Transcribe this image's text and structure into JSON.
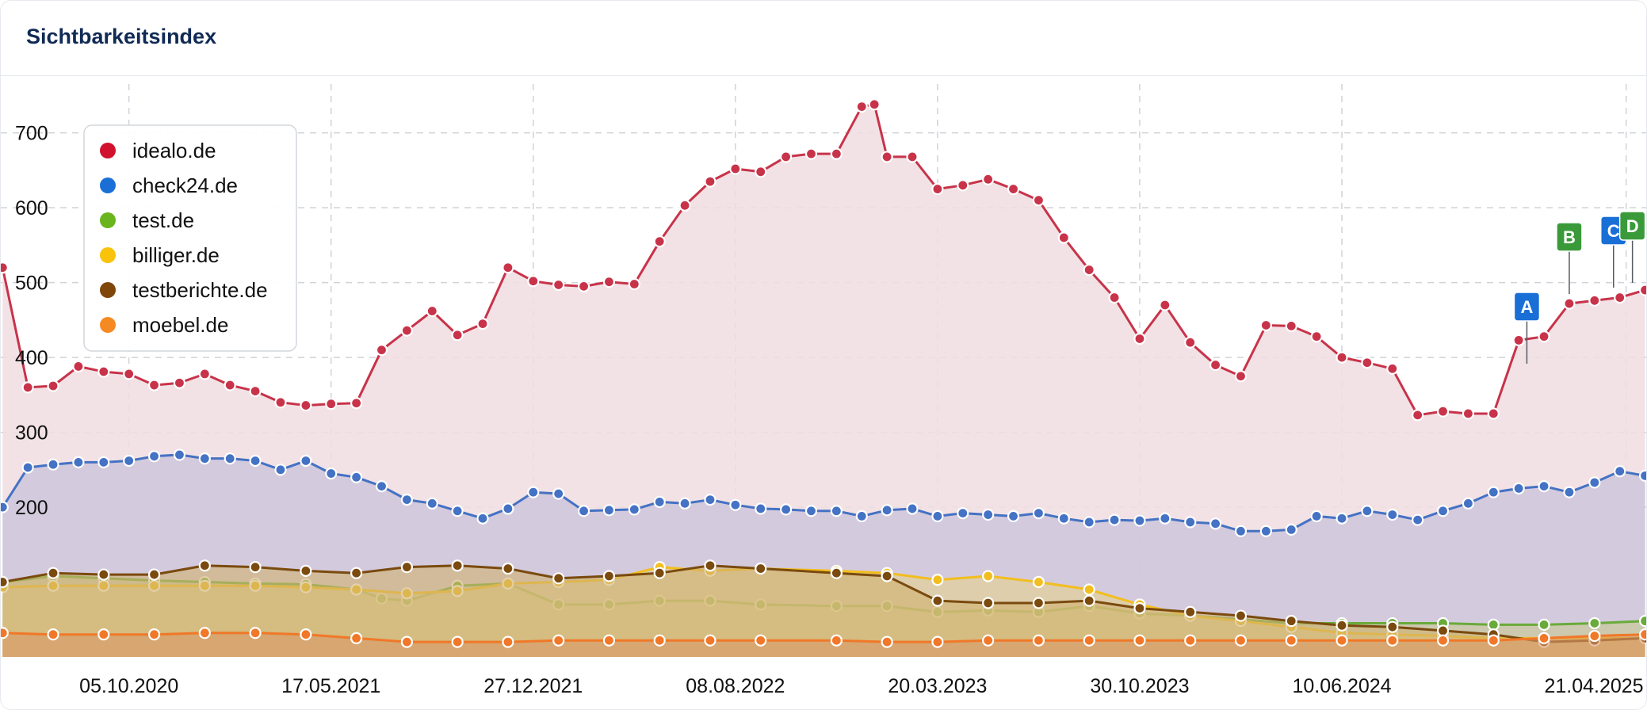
{
  "header": {
    "title": "Sichtbarkeitsindex"
  },
  "chart_data": {
    "type": "area",
    "ylabel": "",
    "xlabel": "",
    "grid": true,
    "legend_position": "top-left",
    "ylim": [
      0,
      760
    ],
    "y_ticks": [
      200,
      300,
      400,
      500,
      600,
      700
    ],
    "x_range": [
      "2020-05-16",
      "2025-05-15"
    ],
    "x_ticks": [
      "05.10.2020",
      "17.05.2021",
      "27.12.2021",
      "08.08.2022",
      "20.03.2023",
      "30.10.2023",
      "10.06.2024",
      "21.04.2025"
    ],
    "x_tick_dates": [
      "2020-10-05",
      "2021-05-17",
      "2021-12-27",
      "2022-08-08",
      "2023-03-20",
      "2023-10-30",
      "2024-06-10",
      "2025-04-21"
    ],
    "series": [
      {
        "name": "idealo.de",
        "color": "#c8334a",
        "fill": "#f0dde0",
        "points": [
          [
            "2020-05-18",
            520
          ],
          [
            "2020-06-15",
            360
          ],
          [
            "2020-07-13",
            362
          ],
          [
            "2020-08-10",
            388
          ],
          [
            "2020-09-07",
            381
          ],
          [
            "2020-10-05",
            378
          ],
          [
            "2020-11-02",
            363
          ],
          [
            "2020-11-30",
            366
          ],
          [
            "2020-12-28",
            378
          ],
          [
            "2021-01-25",
            363
          ],
          [
            "2021-02-22",
            355
          ],
          [
            "2021-03-22",
            340
          ],
          [
            "2021-04-19",
            336
          ],
          [
            "2021-05-17",
            338
          ],
          [
            "2021-06-14",
            339
          ],
          [
            "2021-07-12",
            410
          ],
          [
            "2021-08-09",
            436
          ],
          [
            "2021-09-06",
            462
          ],
          [
            "2021-10-04",
            430
          ],
          [
            "2021-11-01",
            445
          ],
          [
            "2021-11-29",
            520
          ],
          [
            "2021-12-27",
            502
          ],
          [
            "2022-01-24",
            497
          ],
          [
            "2022-02-21",
            495
          ],
          [
            "2022-03-21",
            501
          ],
          [
            "2022-04-18",
            498
          ],
          [
            "2022-05-16",
            555
          ],
          [
            "2022-06-13",
            603
          ],
          [
            "2022-07-11",
            635
          ],
          [
            "2022-08-08",
            652
          ],
          [
            "2022-09-05",
            648
          ],
          [
            "2022-10-03",
            668
          ],
          [
            "2022-10-31",
            672
          ],
          [
            "2022-11-28",
            672
          ],
          [
            "2022-12-26",
            735
          ],
          [
            "2023-01-09",
            738
          ],
          [
            "2023-01-23",
            668
          ],
          [
            "2023-02-20",
            668
          ],
          [
            "2023-03-20",
            625
          ],
          [
            "2023-04-17",
            630
          ],
          [
            "2023-05-15",
            638
          ],
          [
            "2023-06-12",
            625
          ],
          [
            "2023-07-10",
            610
          ],
          [
            "2023-08-07",
            560
          ],
          [
            "2023-09-04",
            517
          ],
          [
            "2023-10-02",
            480
          ],
          [
            "2023-10-30",
            425
          ],
          [
            "2023-11-27",
            470
          ],
          [
            "2023-12-25",
            420
          ],
          [
            "2024-01-22",
            390
          ],
          [
            "2024-02-19",
            375
          ],
          [
            "2024-03-18",
            443
          ],
          [
            "2024-04-15",
            442
          ],
          [
            "2024-05-13",
            428
          ],
          [
            "2024-06-10",
            400
          ],
          [
            "2024-07-08",
            393
          ],
          [
            "2024-08-05",
            385
          ],
          [
            "2024-09-02",
            323
          ],
          [
            "2024-09-30",
            328
          ],
          [
            "2024-10-28",
            325
          ],
          [
            "2024-11-25",
            325
          ],
          [
            "2024-12-23",
            423
          ],
          [
            "2025-01-20",
            428
          ],
          [
            "2025-02-17",
            472
          ],
          [
            "2025-03-17",
            476
          ],
          [
            "2025-04-14",
            480
          ],
          [
            "2025-05-12",
            490
          ]
        ]
      },
      {
        "name": "check24.de",
        "color": "#4472c4",
        "fill": "#cec6dc",
        "points": [
          [
            "2020-05-18",
            200
          ],
          [
            "2020-06-15",
            253
          ],
          [
            "2020-07-13",
            257
          ],
          [
            "2020-08-10",
            260
          ],
          [
            "2020-09-07",
            260
          ],
          [
            "2020-10-05",
            262
          ],
          [
            "2020-11-02",
            268
          ],
          [
            "2020-11-30",
            270
          ],
          [
            "2020-12-28",
            265
          ],
          [
            "2021-01-25",
            265
          ],
          [
            "2021-02-22",
            262
          ],
          [
            "2021-03-22",
            250
          ],
          [
            "2021-04-19",
            262
          ],
          [
            "2021-05-17",
            245
          ],
          [
            "2021-06-14",
            240
          ],
          [
            "2021-07-12",
            228
          ],
          [
            "2021-08-09",
            210
          ],
          [
            "2021-09-06",
            205
          ],
          [
            "2021-10-04",
            195
          ],
          [
            "2021-11-01",
            185
          ],
          [
            "2021-11-29",
            198
          ],
          [
            "2021-12-27",
            220
          ],
          [
            "2022-01-24",
            218
          ],
          [
            "2022-02-21",
            195
          ],
          [
            "2022-03-21",
            196
          ],
          [
            "2022-04-18",
            197
          ],
          [
            "2022-05-16",
            207
          ],
          [
            "2022-06-13",
            205
          ],
          [
            "2022-07-11",
            210
          ],
          [
            "2022-08-08",
            203
          ],
          [
            "2022-09-05",
            198
          ],
          [
            "2022-10-03",
            197
          ],
          [
            "2022-10-31",
            195
          ],
          [
            "2022-11-28",
            195
          ],
          [
            "2022-12-26",
            188
          ],
          [
            "2023-01-23",
            196
          ],
          [
            "2023-02-20",
            198
          ],
          [
            "2023-03-20",
            188
          ],
          [
            "2023-04-17",
            192
          ],
          [
            "2023-05-15",
            190
          ],
          [
            "2023-06-12",
            188
          ],
          [
            "2023-07-10",
            192
          ],
          [
            "2023-08-07",
            185
          ],
          [
            "2023-09-04",
            180
          ],
          [
            "2023-10-02",
            183
          ],
          [
            "2023-10-30",
            182
          ],
          [
            "2023-11-27",
            185
          ],
          [
            "2023-12-25",
            180
          ],
          [
            "2024-01-22",
            178
          ],
          [
            "2024-02-19",
            168
          ],
          [
            "2024-03-18",
            168
          ],
          [
            "2024-04-15",
            170
          ],
          [
            "2024-05-13",
            188
          ],
          [
            "2024-06-10",
            185
          ],
          [
            "2024-07-08",
            195
          ],
          [
            "2024-08-05",
            190
          ],
          [
            "2024-09-02",
            183
          ],
          [
            "2024-09-30",
            195
          ],
          [
            "2024-10-28",
            205
          ],
          [
            "2024-11-25",
            220
          ],
          [
            "2024-12-23",
            225
          ],
          [
            "2025-01-20",
            228
          ],
          [
            "2025-02-17",
            220
          ],
          [
            "2025-03-17",
            233
          ],
          [
            "2025-04-14",
            248
          ],
          [
            "2025-05-12",
            242
          ]
        ]
      },
      {
        "name": "test.de",
        "color": "#6aaa3a",
        "fill": "#c8c890",
        "points": [
          [
            "2020-05-18",
            100
          ],
          [
            "2020-07-13",
            108
          ],
          [
            "2020-09-07",
            105
          ],
          [
            "2020-11-02",
            102
          ],
          [
            "2020-12-28",
            100
          ],
          [
            "2021-02-22",
            98
          ],
          [
            "2021-04-19",
            97
          ],
          [
            "2021-06-14",
            90
          ],
          [
            "2021-07-12",
            78
          ],
          [
            "2021-08-09",
            75
          ],
          [
            "2021-10-04",
            95
          ],
          [
            "2021-11-29",
            98
          ],
          [
            "2022-01-24",
            70
          ],
          [
            "2022-03-21",
            70
          ],
          [
            "2022-05-16",
            75
          ],
          [
            "2022-07-11",
            75
          ],
          [
            "2022-09-05",
            70
          ],
          [
            "2022-11-28",
            68
          ],
          [
            "2023-01-23",
            68
          ],
          [
            "2023-03-20",
            60
          ],
          [
            "2023-05-15",
            62
          ],
          [
            "2023-07-10",
            60
          ],
          [
            "2023-09-04",
            68
          ],
          [
            "2023-10-30",
            58
          ],
          [
            "2023-12-25",
            55
          ],
          [
            "2024-02-19",
            50
          ],
          [
            "2024-04-15",
            45
          ],
          [
            "2024-06-10",
            45
          ],
          [
            "2024-08-05",
            45
          ],
          [
            "2024-09-30",
            45
          ],
          [
            "2024-11-25",
            43
          ],
          [
            "2025-01-20",
            43
          ],
          [
            "2025-03-17",
            45
          ],
          [
            "2025-05-12",
            48
          ]
        ]
      },
      {
        "name": "billiger.de",
        "color": "#f2be1e",
        "fill": "#e6d08a",
        "points": [
          [
            "2020-05-18",
            93
          ],
          [
            "2020-07-13",
            95
          ],
          [
            "2020-09-07",
            95
          ],
          [
            "2020-11-02",
            95
          ],
          [
            "2020-12-28",
            95
          ],
          [
            "2021-02-22",
            95
          ],
          [
            "2021-04-19",
            93
          ],
          [
            "2021-06-14",
            90
          ],
          [
            "2021-08-09",
            85
          ],
          [
            "2021-10-04",
            88
          ],
          [
            "2021-11-29",
            98
          ],
          [
            "2022-01-24",
            100
          ],
          [
            "2022-03-21",
            103
          ],
          [
            "2022-05-16",
            120
          ],
          [
            "2022-07-11",
            115
          ],
          [
            "2022-09-05",
            118
          ],
          [
            "2022-11-28",
            115
          ],
          [
            "2023-01-23",
            112
          ],
          [
            "2023-03-20",
            103
          ],
          [
            "2023-05-15",
            108
          ],
          [
            "2023-07-10",
            100
          ],
          [
            "2023-09-04",
            90
          ],
          [
            "2023-10-30",
            70
          ],
          [
            "2023-12-25",
            55
          ],
          [
            "2024-02-19",
            48
          ],
          [
            "2024-04-15",
            40
          ],
          [
            "2024-06-10",
            32
          ],
          [
            "2024-08-05",
            30
          ],
          [
            "2024-09-30",
            28
          ],
          [
            "2024-11-25",
            25
          ],
          [
            "2025-01-20",
            25
          ],
          [
            "2025-03-17",
            25
          ],
          [
            "2025-05-12",
            25
          ]
        ]
      },
      {
        "name": "testberichte.de",
        "color": "#7a4a0e",
        "fill": "#d0b070",
        "points": [
          [
            "2020-05-18",
            100
          ],
          [
            "2020-07-13",
            112
          ],
          [
            "2020-09-07",
            110
          ],
          [
            "2020-11-02",
            110
          ],
          [
            "2020-12-28",
            122
          ],
          [
            "2021-02-22",
            120
          ],
          [
            "2021-04-19",
            115
          ],
          [
            "2021-06-14",
            112
          ],
          [
            "2021-08-09",
            120
          ],
          [
            "2021-10-04",
            122
          ],
          [
            "2021-11-29",
            118
          ],
          [
            "2022-01-24",
            105
          ],
          [
            "2022-03-21",
            108
          ],
          [
            "2022-05-16",
            112
          ],
          [
            "2022-07-11",
            122
          ],
          [
            "2022-09-05",
            118
          ],
          [
            "2022-11-28",
            112
          ],
          [
            "2023-01-23",
            108
          ],
          [
            "2023-03-20",
            75
          ],
          [
            "2023-05-15",
            72
          ],
          [
            "2023-07-10",
            72
          ],
          [
            "2023-09-04",
            75
          ],
          [
            "2023-10-30",
            65
          ],
          [
            "2023-12-25",
            60
          ],
          [
            "2024-02-19",
            55
          ],
          [
            "2024-04-15",
            48
          ],
          [
            "2024-06-10",
            42
          ],
          [
            "2024-08-05",
            40
          ],
          [
            "2024-09-30",
            35
          ],
          [
            "2024-11-25",
            30
          ],
          [
            "2025-01-20",
            20
          ],
          [
            "2025-03-17",
            22
          ],
          [
            "2025-05-12",
            25
          ]
        ]
      },
      {
        "name": "moebel.de",
        "color": "#f07828",
        "fill": "#d89868",
        "points": [
          [
            "2020-05-18",
            32
          ],
          [
            "2020-07-13",
            30
          ],
          [
            "2020-09-07",
            30
          ],
          [
            "2020-11-02",
            30
          ],
          [
            "2020-12-28",
            32
          ],
          [
            "2021-02-22",
            32
          ],
          [
            "2021-04-19",
            30
          ],
          [
            "2021-06-14",
            25
          ],
          [
            "2021-08-09",
            20
          ],
          [
            "2021-10-04",
            20
          ],
          [
            "2021-11-29",
            20
          ],
          [
            "2022-01-24",
            22
          ],
          [
            "2022-03-21",
            22
          ],
          [
            "2022-05-16",
            22
          ],
          [
            "2022-07-11",
            22
          ],
          [
            "2022-09-05",
            22
          ],
          [
            "2022-11-28",
            22
          ],
          [
            "2023-01-23",
            20
          ],
          [
            "2023-03-20",
            20
          ],
          [
            "2023-05-15",
            22
          ],
          [
            "2023-07-10",
            22
          ],
          [
            "2023-09-04",
            22
          ],
          [
            "2023-10-30",
            22
          ],
          [
            "2023-12-25",
            22
          ],
          [
            "2024-02-19",
            22
          ],
          [
            "2024-04-15",
            22
          ],
          [
            "2024-06-10",
            22
          ],
          [
            "2024-08-05",
            22
          ],
          [
            "2024-09-30",
            22
          ],
          [
            "2024-11-25",
            22
          ],
          [
            "2025-01-20",
            25
          ],
          [
            "2025-03-17",
            28
          ],
          [
            "2025-05-12",
            30
          ]
        ]
      }
    ],
    "annotations": [
      {
        "label": "A",
        "date": "2025-01-01",
        "color": "#1a6fd6"
      },
      {
        "label": "B",
        "date": "2025-02-17",
        "color": "#3a9a3a"
      },
      {
        "label": "C",
        "date": "2025-04-07",
        "color": "#1a6fd6"
      },
      {
        "label": "D",
        "date": "2025-04-28",
        "color": "#3a9a3a"
      }
    ]
  }
}
